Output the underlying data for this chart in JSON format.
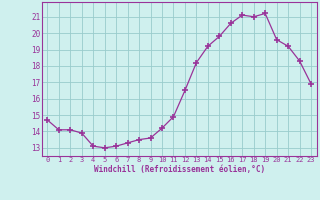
{
  "hours": [
    0,
    1,
    2,
    3,
    4,
    5,
    6,
    7,
    8,
    9,
    10,
    11,
    12,
    13,
    14,
    15,
    16,
    17,
    18,
    19,
    20,
    21,
    22,
    23
  ],
  "windchill": [
    14.7,
    14.1,
    14.1,
    13.9,
    13.1,
    13.0,
    13.1,
    13.3,
    13.5,
    13.6,
    14.2,
    14.9,
    16.5,
    18.2,
    19.2,
    19.8,
    20.6,
    21.1,
    21.0,
    21.2,
    19.6,
    19.2,
    18.3,
    16.9
  ],
  "line_color": "#993399",
  "marker": "+",
  "marker_size": 4,
  "bg_color": "#cff0ee",
  "grid_color": "#99cccc",
  "ylim": [
    12.5,
    21.9
  ],
  "yticks": [
    13,
    14,
    15,
    16,
    17,
    18,
    19,
    20,
    21
  ],
  "xlabel": "Windchill (Refroidissement éolien,°C)",
  "xlim": [
    -0.5,
    23.5
  ]
}
